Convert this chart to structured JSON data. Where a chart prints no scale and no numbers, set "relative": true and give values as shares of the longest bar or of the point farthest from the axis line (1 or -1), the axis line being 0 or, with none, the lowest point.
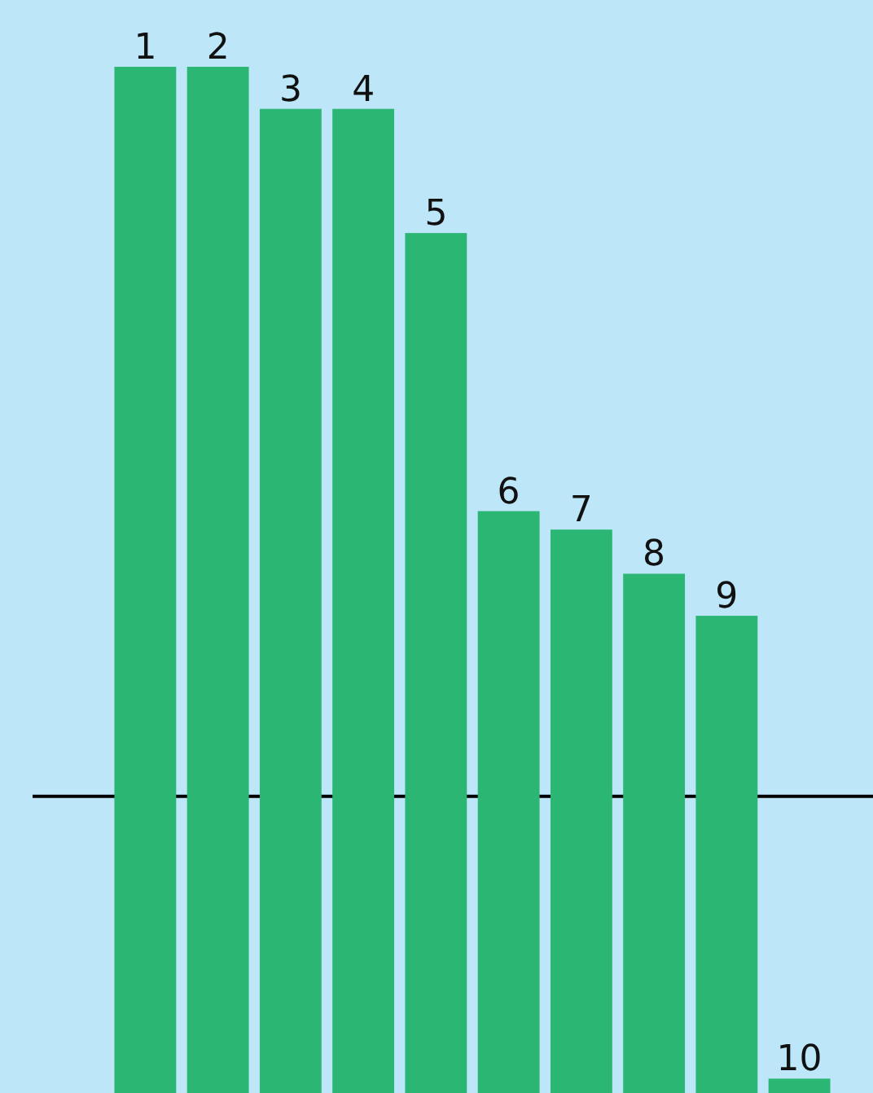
{
  "chart_data": {
    "type": "bar",
    "relative": true,
    "categories": [
      "1",
      "2",
      "3",
      "4",
      "5",
      "6",
      "7",
      "8",
      "9",
      "10"
    ],
    "values": [
      1,
      1,
      0.959,
      0.959,
      0.838,
      0.567,
      0.549,
      0.506,
      0.465,
      0.014
    ],
    "color": "#2bb673",
    "ref_lines": [
      {
        "axis": "y",
        "value": 0.289,
        "color": "#000000"
      }
    ]
  }
}
